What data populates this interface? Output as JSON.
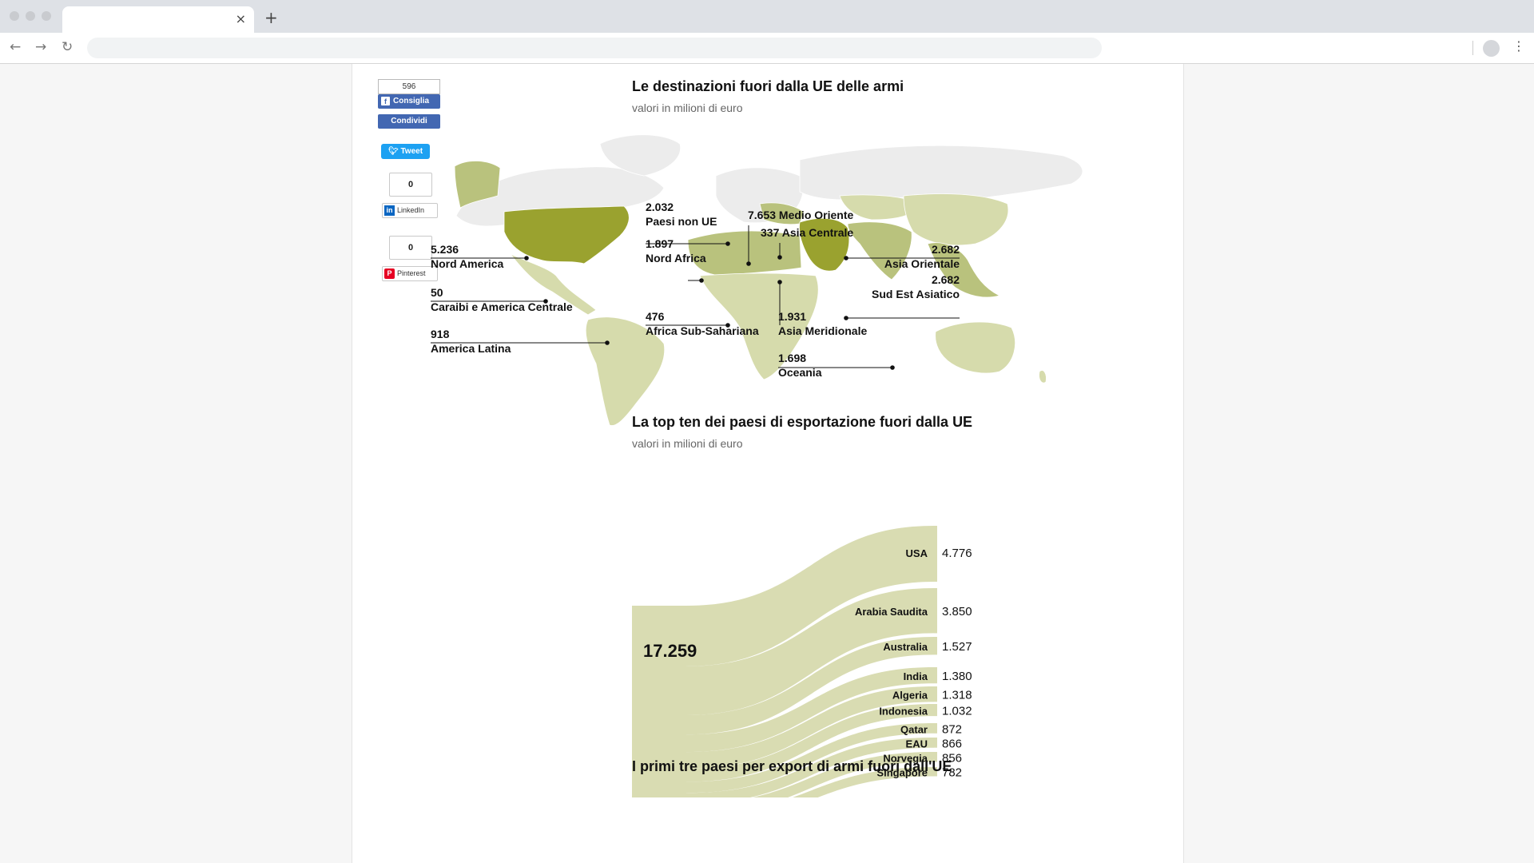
{
  "browser": {
    "tab_close": "×",
    "new_tab": "+",
    "back": "←",
    "forward": "→",
    "reload": "↻",
    "menu": "⋮"
  },
  "social": {
    "fb_count": "596",
    "fb_like": "Consiglia",
    "fb_share": "Condividi",
    "tweet": "Tweet",
    "linkedin_count": "0",
    "linkedin": "LinkedIn",
    "pinterest_count": "0",
    "pinterest": "Pinterest"
  },
  "map_section": {
    "title": "Le destinazioni fuori dalla UE delle armi",
    "subtitle": "valori in milioni di euro",
    "colors": {
      "light": "#d6dbac",
      "medium": "#b9c27d",
      "dark": "#9aa22f",
      "none": "#ececec"
    },
    "regions": [
      {
        "value": "5.236",
        "name": "Nord America"
      },
      {
        "value": "50",
        "name": "Caraibi e America Centrale"
      },
      {
        "value": "918",
        "name": "America Latina"
      },
      {
        "value": "2.032",
        "name": "Paesi non UE"
      },
      {
        "value": "1.897",
        "name": "Nord Africa"
      },
      {
        "value": "476",
        "name": "Africa Sub-Sahariana"
      },
      {
        "value": "7.653",
        "name": "Medio Oriente"
      },
      {
        "value": "337",
        "name": "Asia Centrale"
      },
      {
        "value": "1.931",
        "name": "Asia Meridionale"
      },
      {
        "value": "1.698",
        "name": "Oceania"
      },
      {
        "value": "2.682",
        "name": "Asia Orientale"
      },
      {
        "value": "2.682",
        "name": "Sud Est Asiatico"
      }
    ]
  },
  "flow_section": {
    "title": "La top ten dei paesi di esportazione fuori dalla UE",
    "subtitle": "valori in milioni di euro",
    "total": "17.259",
    "color": "#d9dcb2",
    "countries": [
      {
        "name": "USA",
        "value": "4.776",
        "amount": 4776
      },
      {
        "name": "Arabia Saudita",
        "value": "3.850",
        "amount": 3850
      },
      {
        "name": "Australia",
        "value": "1.527",
        "amount": 1527
      },
      {
        "name": "India",
        "value": "1.380",
        "amount": 1380
      },
      {
        "name": "Algeria",
        "value": "1.318",
        "amount": 1318
      },
      {
        "name": "Indonesia",
        "value": "1.032",
        "amount": 1032
      },
      {
        "name": "Qatar",
        "value": "872",
        "amount": 872
      },
      {
        "name": "EAU",
        "value": "866",
        "amount": 866
      },
      {
        "name": "Norvegia",
        "value": "856",
        "amount": 856
      },
      {
        "name": "Singapore",
        "value": "782",
        "amount": 782
      }
    ]
  },
  "third_section": {
    "title": "I primi tre paesi per export di armi fuori dall'UE"
  }
}
